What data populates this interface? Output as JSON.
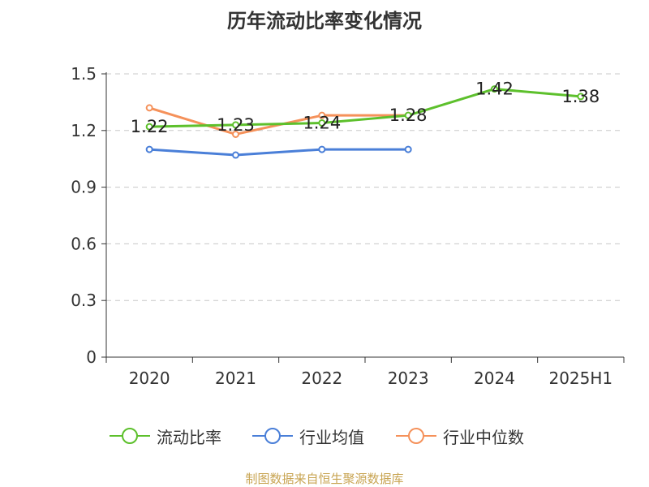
{
  "title": "历年流动比率变化情况",
  "source": "制图数据来自恒生聚源数据库",
  "chart_data": {
    "type": "line",
    "categories": [
      "2020",
      "2021",
      "2022",
      "2023",
      "2024",
      "2025H1"
    ],
    "ylim": [
      0,
      1.5
    ],
    "yticks": [
      "0",
      "0.3",
      "0.6",
      "0.9",
      "1.2",
      "1.5"
    ],
    "ytick_values": [
      0,
      0.3,
      0.6,
      0.9,
      1.2,
      1.5
    ],
    "grid": true,
    "legend_position": "bottom",
    "series": [
      {
        "name": "流动比率",
        "color": "#5dc02c",
        "values": [
          1.22,
          1.23,
          1.24,
          1.28,
          1.42,
          1.38
        ],
        "labels": [
          "1.22",
          "1.23",
          "1.24",
          "1.28",
          "1.42",
          "1.38"
        ]
      },
      {
        "name": "行业均值",
        "color": "#4a7fd8",
        "values": [
          1.1,
          1.07,
          1.1,
          1.1,
          null,
          null
        ]
      },
      {
        "name": "行业中位数",
        "color": "#f5915a",
        "values": [
          1.32,
          1.18,
          1.28,
          1.28,
          null,
          null
        ]
      }
    ]
  }
}
